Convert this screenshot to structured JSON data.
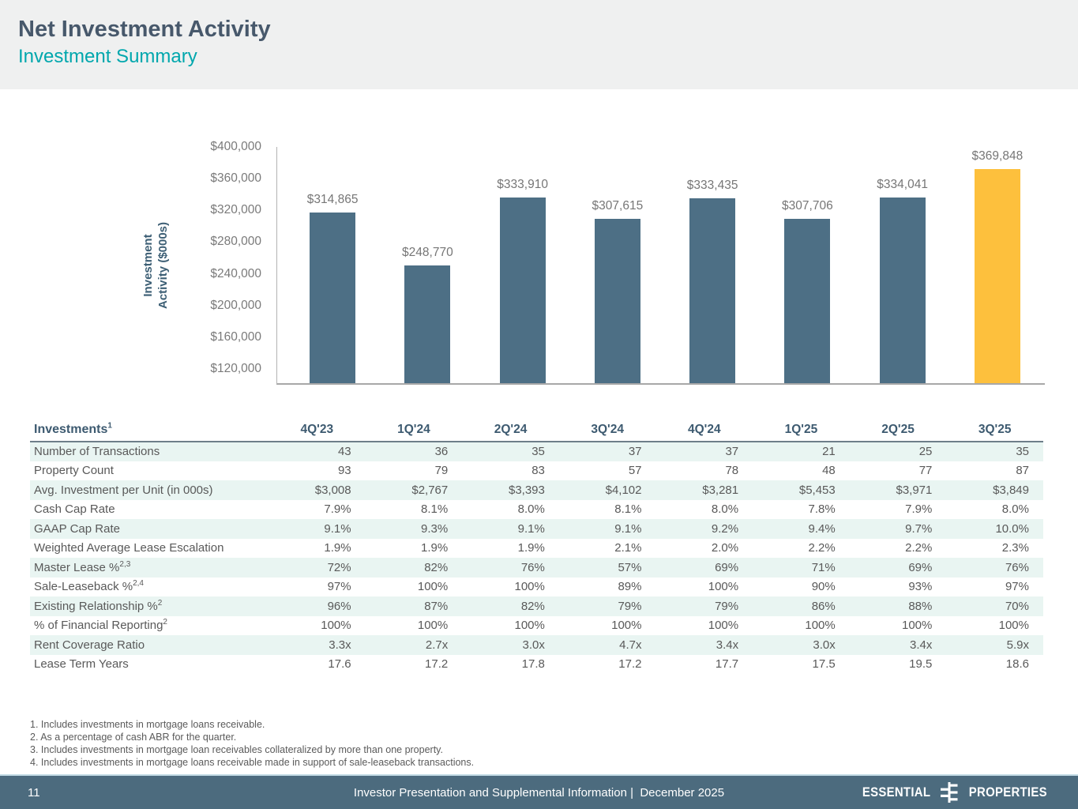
{
  "slide": {
    "title": "Net Investment Activity",
    "subtitle": "Investment Summary"
  },
  "chart_data": {
    "type": "bar",
    "title": "",
    "xlabel": "",
    "ylabel": "Investment\nActivity ($000s)",
    "categories": [
      "4Q'23",
      "1Q'24",
      "2Q'24",
      "3Q'24",
      "4Q'24",
      "1Q'25",
      "2Q'25",
      "3Q'25"
    ],
    "values": [
      314865,
      248770,
      333910,
      307615,
      333435,
      307706,
      334041,
      369848
    ],
    "labels": [
      "$314,865",
      "$248,770",
      "$333,910",
      "$307,615",
      "$333,435",
      "$307,706",
      "$334,041",
      "$369,848"
    ],
    "ylim": [
      100000,
      400000
    ],
    "grid": false,
    "legend": "none",
    "yticks": [
      {
        "v": 400000,
        "label": "$400,000"
      },
      {
        "v": 360000,
        "label": "$360,000"
      },
      {
        "v": 320000,
        "label": "$320,000"
      },
      {
        "v": 280000,
        "label": "$280,000"
      },
      {
        "v": 240000,
        "label": "$240,000"
      },
      {
        "v": 200000,
        "label": "$200,000"
      },
      {
        "v": 160000,
        "label": "$160,000"
      },
      {
        "v": 120000,
        "label": "$120,000"
      }
    ],
    "bar_color": "#4d6f85",
    "highlight_color": "#fdc03d",
    "highlight_index": 7
  },
  "table": {
    "header_label": "Investments",
    "header_sup": "1",
    "columns": [
      "4Q'23",
      "1Q'24",
      "2Q'24",
      "3Q'24",
      "4Q'24",
      "1Q'25",
      "2Q'25",
      "3Q'25"
    ],
    "rows": [
      {
        "label": "Number of Transactions",
        "sup": "",
        "values": [
          "43",
          "36",
          "35",
          "37",
          "37",
          "21",
          "25",
          "35"
        ]
      },
      {
        "label": "Property Count",
        "sup": "",
        "values": [
          "93",
          "79",
          "83",
          "57",
          "78",
          "48",
          "77",
          "87"
        ]
      },
      {
        "label": "Avg. Investment per Unit (in 000s)",
        "sup": "",
        "values": [
          "$3,008",
          "$2,767",
          "$3,393",
          "$4,102",
          "$3,281",
          "$5,453",
          "$3,971",
          "$3,849"
        ]
      },
      {
        "label": "Cash Cap Rate",
        "sup": "",
        "values": [
          "7.9%",
          "8.1%",
          "8.0%",
          "8.1%",
          "8.0%",
          "7.8%",
          "7.9%",
          "8.0%"
        ]
      },
      {
        "label": "GAAP Cap Rate",
        "sup": "",
        "values": [
          "9.1%",
          "9.3%",
          "9.1%",
          "9.1%",
          "9.2%",
          "9.4%",
          "9.7%",
          "10.0%"
        ]
      },
      {
        "label": "Weighted Average Lease Escalation",
        "sup": "",
        "values": [
          "1.9%",
          "1.9%",
          "1.9%",
          "2.1%",
          "2.0%",
          "2.2%",
          "2.2%",
          "2.3%"
        ]
      },
      {
        "label": "Master Lease %",
        "sup": "2,3",
        "values": [
          "72%",
          "82%",
          "76%",
          "57%",
          "69%",
          "71%",
          "69%",
          "76%"
        ]
      },
      {
        "label": "Sale-Leaseback %",
        "sup": "2,4",
        "values": [
          "97%",
          "100%",
          "100%",
          "89%",
          "100%",
          "90%",
          "93%",
          "97%"
        ]
      },
      {
        "label": "Existing Relationship %",
        "sup": "2",
        "values": [
          "96%",
          "87%",
          "82%",
          "79%",
          "79%",
          "86%",
          "88%",
          "70%"
        ]
      },
      {
        "label": "% of Financial Reporting",
        "sup": "2",
        "values": [
          "100%",
          "100%",
          "100%",
          "100%",
          "100%",
          "100%",
          "100%",
          "100%"
        ]
      },
      {
        "label": "Rent Coverage Ratio",
        "sup": "",
        "values": [
          "3.3x",
          "2.7x",
          "3.0x",
          "4.7x",
          "3.4x",
          "3.0x",
          "3.4x",
          "5.9x"
        ]
      },
      {
        "label": "Lease Term Years",
        "sup": "",
        "values": [
          "17.6",
          "17.2",
          "17.8",
          "17.2",
          "17.7",
          "17.5",
          "19.5",
          "18.6"
        ]
      }
    ]
  },
  "footnotes": [
    "1. Includes investments in mortgage loans receivable.",
    "2. As a percentage of cash ABR for the quarter.",
    "3. Includes investments in mortgage loan receivables collateralized by more than one property.",
    "4. Includes investments in mortgage loans receivable made in support of sale-leaseback transactions."
  ],
  "footer": {
    "page_number": "11",
    "center_text": "Investor Presentation and Supplemental Information |  December 2025",
    "logo_left": "ESSENTIAL",
    "logo_right": "PROPERTIES"
  },
  "colors": {
    "header_bg": "#eff0f0",
    "title_text": "#47586b",
    "accent_teal": "#00a7ad",
    "bar": "#4d6f85",
    "bar_highlight": "#fdc03d",
    "table_alt_row": "#e9f5f2",
    "table_header_text": "#3d5a70",
    "body_text": "#595959",
    "footer_bg": "#4c6b7e"
  }
}
